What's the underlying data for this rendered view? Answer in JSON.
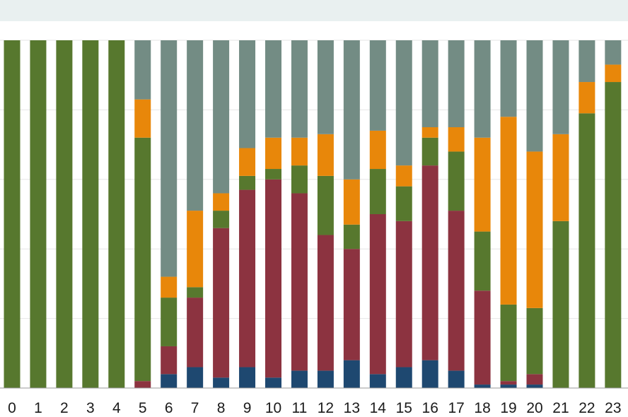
{
  "chart_data": {
    "type": "bar",
    "stacked": true,
    "normalized": true,
    "categories": [
      "0",
      "1",
      "2",
      "3",
      "4",
      "5",
      "6",
      "7",
      "8",
      "9",
      "10",
      "11",
      "12",
      "13",
      "14",
      "15",
      "16",
      "17",
      "18",
      "19",
      "20",
      "21",
      "22",
      "23"
    ],
    "ylim": [
      0,
      100
    ],
    "grid": true,
    "title": "",
    "xlabel": "",
    "ylabel": "",
    "series": [
      {
        "color": "#1e4870",
        "values": [
          0,
          0,
          0,
          0,
          0,
          0,
          4,
          6,
          3,
          6,
          3,
          5,
          5,
          8,
          4,
          6,
          8,
          5,
          1,
          1,
          1,
          0,
          0,
          0
        ]
      },
      {
        "color": "#8c3340",
        "values": [
          0,
          0,
          0,
          0,
          0,
          2,
          8,
          20,
          43,
          51,
          57,
          51,
          39,
          32,
          46,
          42,
          56,
          46,
          27,
          1,
          3,
          0,
          0,
          0
        ]
      },
      {
        "color": "#57782e",
        "values": [
          100,
          100,
          100,
          100,
          100,
          70,
          14,
          3,
          5,
          4,
          3,
          8,
          17,
          7,
          13,
          10,
          8,
          17,
          17,
          22,
          19,
          48,
          79,
          88
        ]
      },
      {
        "color": "#e8870a",
        "values": [
          0,
          0,
          0,
          0,
          0,
          11,
          6,
          22,
          5,
          8,
          9,
          8,
          12,
          13,
          11,
          6,
          3,
          7,
          27,
          54,
          45,
          25,
          9,
          5
        ]
      },
      {
        "color": "#738c84",
        "values": [
          0,
          0,
          0,
          0,
          0,
          17,
          68,
          49,
          44,
          31,
          28,
          28,
          27,
          40,
          26,
          36,
          25,
          25,
          28,
          22,
          32,
          27,
          12,
          7
        ]
      }
    ]
  }
}
